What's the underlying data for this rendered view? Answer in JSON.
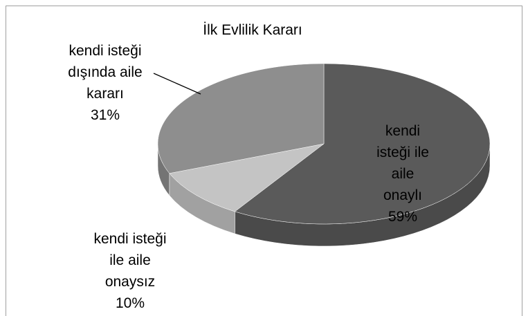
{
  "chart_data": {
    "type": "pie",
    "title": "İlk Evlilik Kararı",
    "categories": [
      "kendi isteği ile aile onaylı",
      "kendi isteği ile aile onaysız",
      "kendi isteği dışında aile kararı"
    ],
    "values": [
      59,
      10,
      31
    ],
    "value_labels": [
      "59%",
      "10%",
      "31%"
    ],
    "colors": [
      "#5a5a5a",
      "#c4c4c4",
      "#8e8e8e"
    ]
  }
}
